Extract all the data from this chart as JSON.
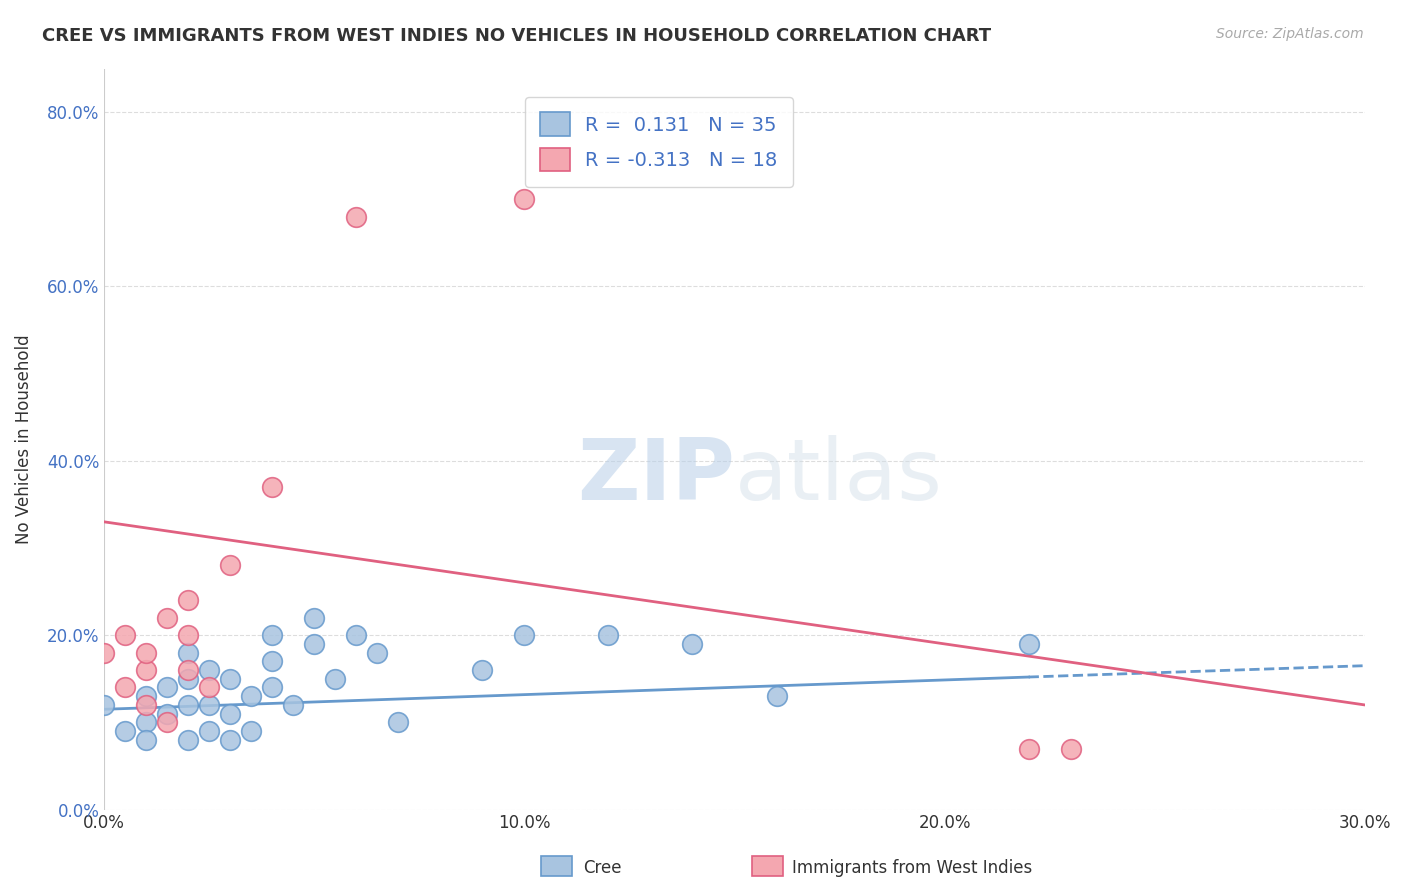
{
  "title": "CREE VS IMMIGRANTS FROM WEST INDIES NO VEHICLES IN HOUSEHOLD CORRELATION CHART",
  "source": "Source: ZipAtlas.com",
  "ylabel": "No Vehicles in Household",
  "xlim": [
    0.0,
    0.3
  ],
  "ylim": [
    0.0,
    0.85
  ],
  "xtick_labels": [
    "0.0%",
    "10.0%",
    "20.0%",
    "30.0%"
  ],
  "xtick_vals": [
    0.0,
    0.1,
    0.2,
    0.3
  ],
  "ytick_labels": [
    "80.0%",
    "60.0%",
    "40.0%",
    "20.0%",
    "0.0%"
  ],
  "ytick_vals": [
    0.8,
    0.6,
    0.4,
    0.2,
    0.0
  ],
  "cree_color": "#a8c4e0",
  "cree_edge_color": "#6699cc",
  "west_indies_color": "#f4a7b0",
  "west_indies_edge_color": "#e06080",
  "cree_R": 0.131,
  "cree_N": 35,
  "west_indies_R": -0.313,
  "west_indies_N": 18,
  "legend_text_color": "#4472c4",
  "background_color": "#ffffff",
  "grid_color": "#dddddd",
  "watermark_zip": "ZIP",
  "watermark_atlas": "atlas",
  "cree_scatter_x": [
    0.0,
    0.005,
    0.01,
    0.01,
    0.01,
    0.015,
    0.015,
    0.02,
    0.02,
    0.02,
    0.02,
    0.025,
    0.025,
    0.025,
    0.03,
    0.03,
    0.03,
    0.035,
    0.035,
    0.04,
    0.04,
    0.04,
    0.045,
    0.05,
    0.05,
    0.055,
    0.06,
    0.065,
    0.07,
    0.09,
    0.1,
    0.12,
    0.14,
    0.16,
    0.22
  ],
  "cree_scatter_y": [
    0.12,
    0.09,
    0.1,
    0.13,
    0.08,
    0.11,
    0.14,
    0.08,
    0.12,
    0.15,
    0.18,
    0.09,
    0.12,
    0.16,
    0.08,
    0.11,
    0.15,
    0.09,
    0.13,
    0.14,
    0.17,
    0.2,
    0.12,
    0.19,
    0.22,
    0.15,
    0.2,
    0.18,
    0.1,
    0.16,
    0.2,
    0.2,
    0.19,
    0.13,
    0.19
  ],
  "west_indies_scatter_x": [
    0.0,
    0.005,
    0.005,
    0.01,
    0.01,
    0.01,
    0.015,
    0.015,
    0.02,
    0.02,
    0.02,
    0.025,
    0.03,
    0.04,
    0.06,
    0.1,
    0.22,
    0.23
  ],
  "west_indies_scatter_y": [
    0.18,
    0.14,
    0.2,
    0.16,
    0.12,
    0.18,
    0.1,
    0.22,
    0.16,
    0.2,
    0.24,
    0.14,
    0.28,
    0.37,
    0.68,
    0.7,
    0.07,
    0.07
  ],
  "cree_trend_x0": 0.0,
  "cree_trend_x1": 0.22,
  "cree_trend_x2": 0.3,
  "cree_trend_y0": 0.115,
  "cree_trend_y1": 0.152,
  "cree_trend_y2": 0.165,
  "west_indies_trend_x0": 0.0,
  "west_indies_trend_x1": 0.3,
  "west_indies_trend_y0": 0.33,
  "west_indies_trend_y1": 0.12
}
